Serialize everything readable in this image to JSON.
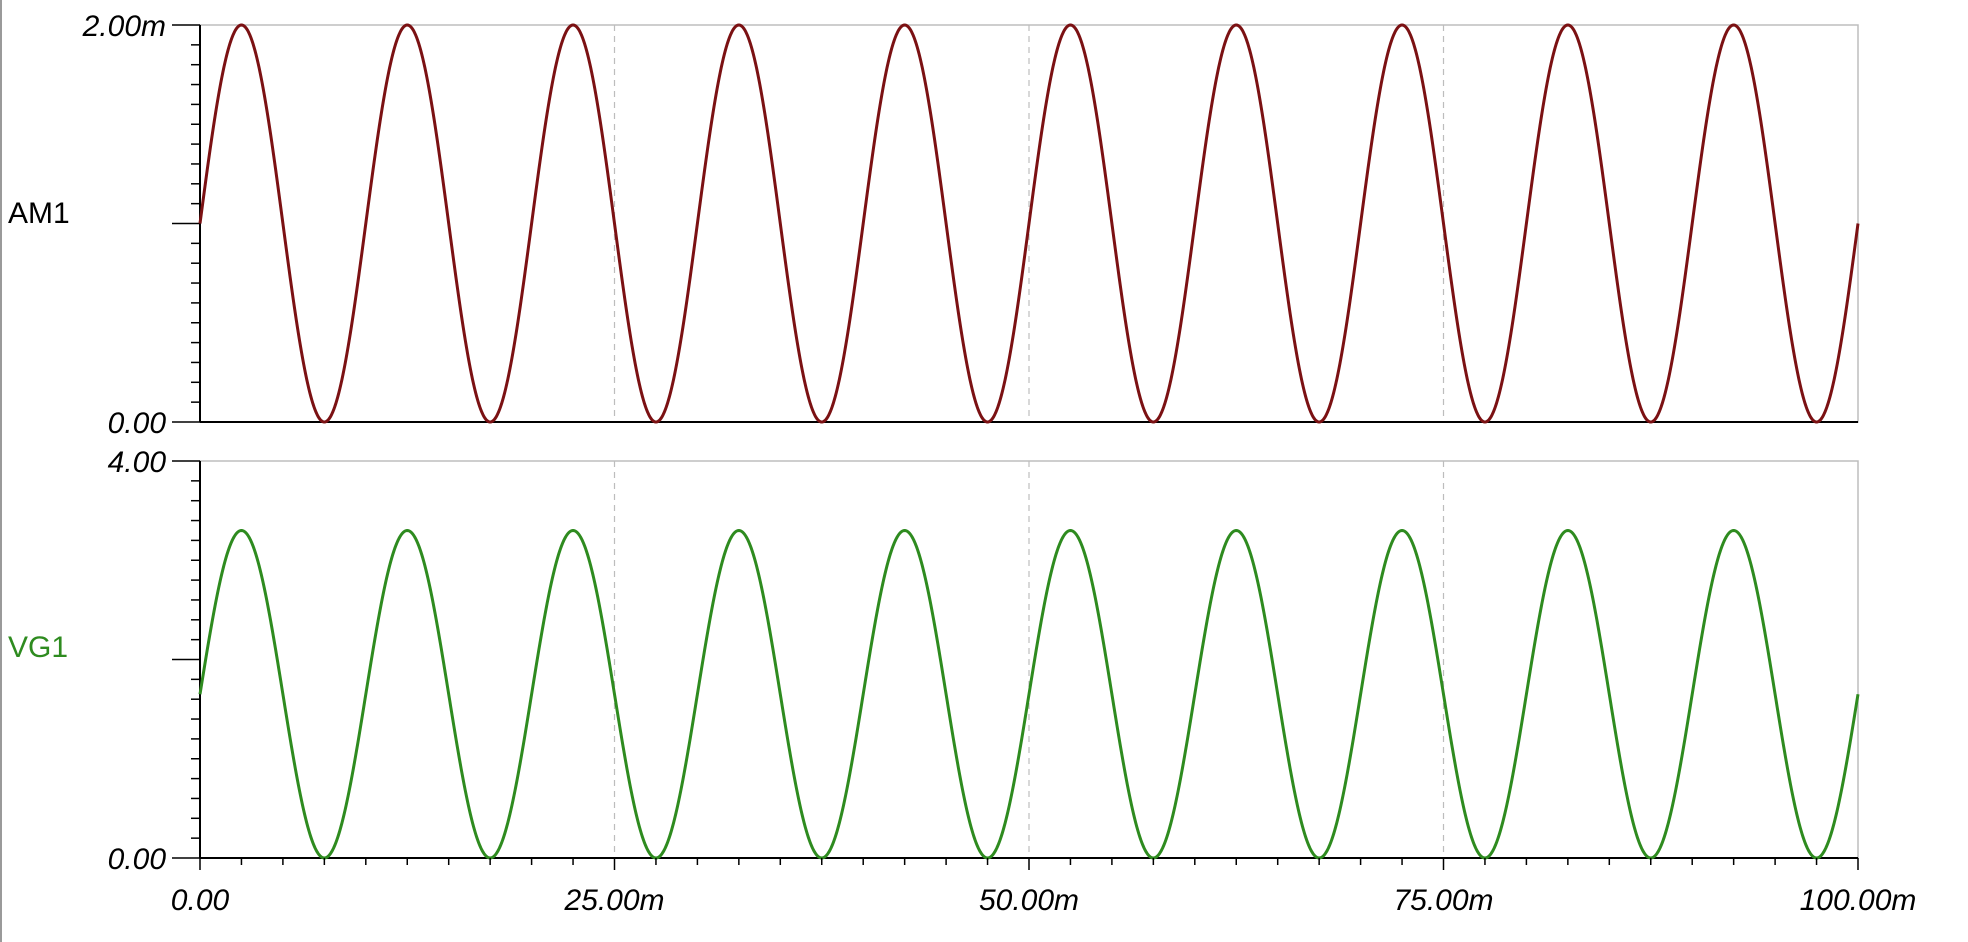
{
  "chart_data": [
    {
      "type": "line",
      "name": "AM1",
      "color": "#7b1113",
      "ylim": [
        0,
        0.002
      ],
      "ytick_labels": [
        "0.00",
        "2.00m"
      ],
      "xlim": [
        0,
        0.1
      ],
      "series": [
        {
          "name": "AM1",
          "offset": 0.001,
          "amplitude": 0.001,
          "frequency_hz": 100,
          "phase_deg": 0
        }
      ]
    },
    {
      "type": "line",
      "name": "VG1",
      "color": "#2e8b1f",
      "ylim": [
        0,
        4
      ],
      "ytick_labels": [
        "0.00",
        "4.00"
      ],
      "xlim": [
        0,
        0.1
      ],
      "series": [
        {
          "name": "VG1",
          "offset": 1.65,
          "amplitude": 1.65,
          "frequency_hz": 100,
          "phase_deg": 0
        }
      ]
    }
  ],
  "x_axis": {
    "ticks": [
      0,
      0.025,
      0.05,
      0.075,
      0.1
    ],
    "tick_labels": [
      "0.00",
      "25.00m",
      "50.00m",
      "75.00m",
      "100.00m"
    ]
  }
}
